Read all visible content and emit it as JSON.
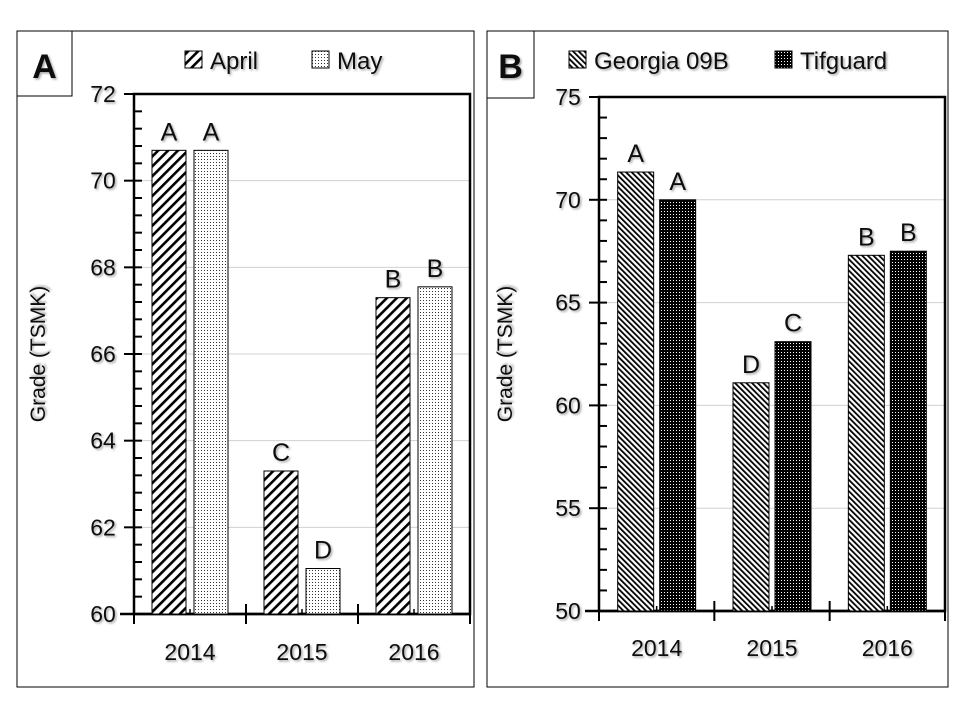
{
  "chart_data": [
    {
      "panel_label": "A",
      "type": "bar",
      "title": "",
      "xlabel": "",
      "ylabel": "Grade (TSMK)",
      "ylim": [
        60,
        72
      ],
      "yticks": [
        60,
        62,
        64,
        66,
        68,
        70,
        72
      ],
      "minor_step": 0.4,
      "grid": true,
      "legend": "top",
      "categories": [
        "2014",
        "2015",
        "2016"
      ],
      "series": [
        {
          "name": "April",
          "pattern": "diagonal-hatch",
          "values": [
            70.7,
            63.3,
            67.3
          ],
          "letters": [
            "A",
            "C",
            "B"
          ]
        },
        {
          "name": "May",
          "pattern": "fine-dots",
          "values": [
            70.7,
            61.05,
            67.55
          ],
          "letters": [
            "A",
            "D",
            "B"
          ]
        }
      ]
    },
    {
      "panel_label": "B",
      "type": "bar",
      "title": "",
      "xlabel": "",
      "ylabel": "Grade (TSMK)",
      "ylim": [
        50,
        75
      ],
      "yticks": [
        50,
        55,
        60,
        65,
        70,
        75
      ],
      "minor_step": 1,
      "grid": true,
      "legend": "top",
      "categories": [
        "2014",
        "2015",
        "2016"
      ],
      "series": [
        {
          "name": "Georgia 09B",
          "pattern": "dense-back-hatch",
          "values": [
            71.35,
            61.1,
            67.3
          ],
          "letters": [
            "A",
            "D",
            "B"
          ]
        },
        {
          "name": "Tifguard",
          "pattern": "dark-dots",
          "values": [
            70.0,
            63.1,
            67.5
          ],
          "letters": [
            "A",
            "C",
            "B"
          ]
        }
      ]
    }
  ]
}
